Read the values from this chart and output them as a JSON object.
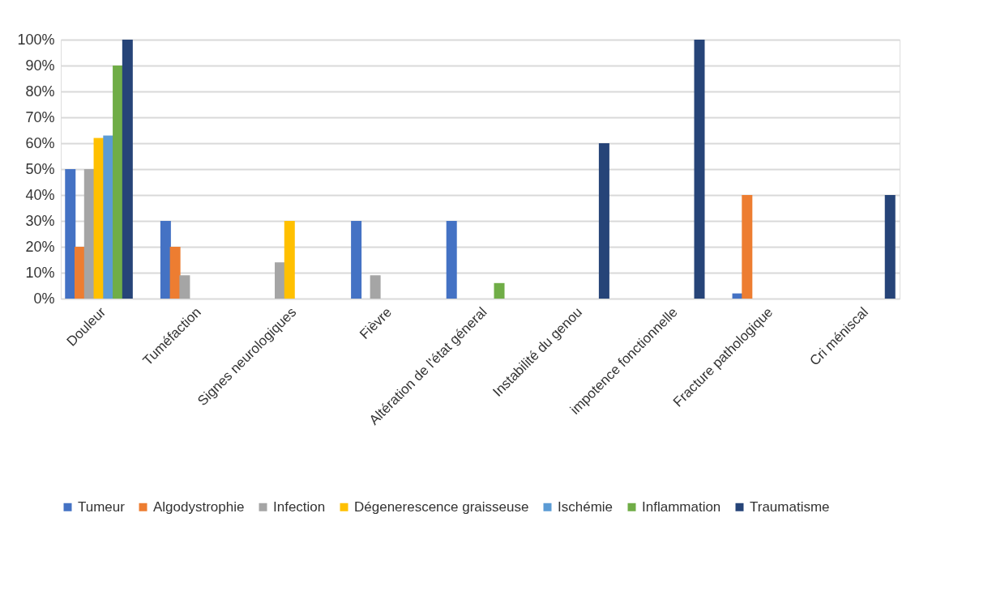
{
  "chart_data": {
    "type": "bar",
    "categories": [
      "Douleur",
      "Tuméfaction",
      "Signes neurologiques",
      "Fièvre",
      "Altération de l'état géneral",
      "Instabilité du genou",
      "impotence fonctionnelle",
      "Fracture pathologique",
      "Cri méniscal"
    ],
    "series": [
      {
        "name": "Tumeur",
        "color": "#4472c4",
        "values": [
          50,
          30,
          0,
          30,
          30,
          0,
          0,
          2,
          0
        ]
      },
      {
        "name": "Algodystrophie",
        "color": "#ed7d31",
        "values": [
          20,
          20,
          0,
          0,
          0,
          0,
          0,
          40,
          0
        ]
      },
      {
        "name": "Infection",
        "color": "#a5a5a5",
        "values": [
          50,
          9,
          14,
          9,
          0,
          0,
          0,
          0,
          0
        ]
      },
      {
        "name": "Dégenerescence graisseuse",
        "color": "#ffc000",
        "values": [
          62,
          0,
          30,
          0,
          0,
          0,
          0,
          0,
          0
        ]
      },
      {
        "name": "Ischémie",
        "color": "#5b9bd5",
        "values": [
          63,
          0,
          0,
          0,
          0,
          0,
          0,
          0,
          0
        ]
      },
      {
        "name": "Inflammation",
        "color": "#70ad47",
        "values": [
          90,
          0,
          0,
          0,
          6,
          0,
          0,
          0,
          0
        ]
      },
      {
        "name": "Traumatisme",
        "color": "#264478",
        "values": [
          100,
          0,
          0,
          0,
          0,
          60,
          100,
          0,
          40
        ]
      }
    ],
    "ylim": [
      0,
      100
    ],
    "yticks": [
      {
        "value": 0,
        "label": "0%"
      },
      {
        "value": 10,
        "label": "10%"
      },
      {
        "value": 20,
        "label": "20%"
      },
      {
        "value": 30,
        "label": "30%"
      },
      {
        "value": 40,
        "label": "40%"
      },
      {
        "value": 50,
        "label": "50%"
      },
      {
        "value": 60,
        "label": "60%"
      },
      {
        "value": 70,
        "label": "70%"
      },
      {
        "value": 80,
        "label": "80%"
      },
      {
        "value": 90,
        "label": "90%"
      },
      {
        "value": 100,
        "label": "100%"
      }
    ],
    "grid": "y",
    "legend": "bottom"
  }
}
